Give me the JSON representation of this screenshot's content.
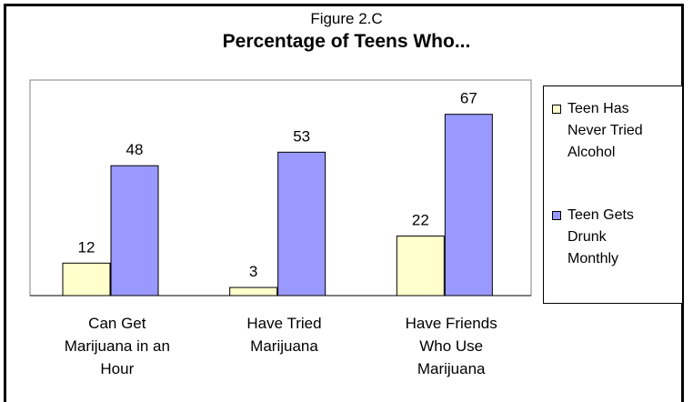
{
  "figure_label": "Figure 2.C",
  "chart_data": {
    "type": "bar",
    "title": "Percentage of Teens Who...",
    "categories": [
      "Can Get Marijuana in an Hour",
      "Have Tried Marijuana",
      "Have Friends Who Use Marijuana"
    ],
    "category_lines": [
      [
        "Can Get",
        "Marijuana in an",
        "Hour"
      ],
      [
        "Have Tried",
        "Marijuana"
      ],
      [
        "Have Friends",
        "Who Use",
        "Marijuana"
      ]
    ],
    "series": [
      {
        "name": "Teen Has Never Tried Alcohol",
        "values": [
          12,
          3,
          22
        ],
        "color": "#ffffcc"
      },
      {
        "name": "Teen Gets Drunk Monthly",
        "values": [
          48,
          53,
          67
        ],
        "color": "#9999ff"
      }
    ],
    "legend_lines": [
      [
        "Teen Has",
        "Never Tried",
        "Alcohol"
      ],
      [
        "Teen Gets",
        "Drunk",
        "Monthly"
      ]
    ],
    "legend_position": "right",
    "grid": false,
    "ylim": [
      0,
      80
    ],
    "xlabel": "",
    "ylabel": ""
  }
}
